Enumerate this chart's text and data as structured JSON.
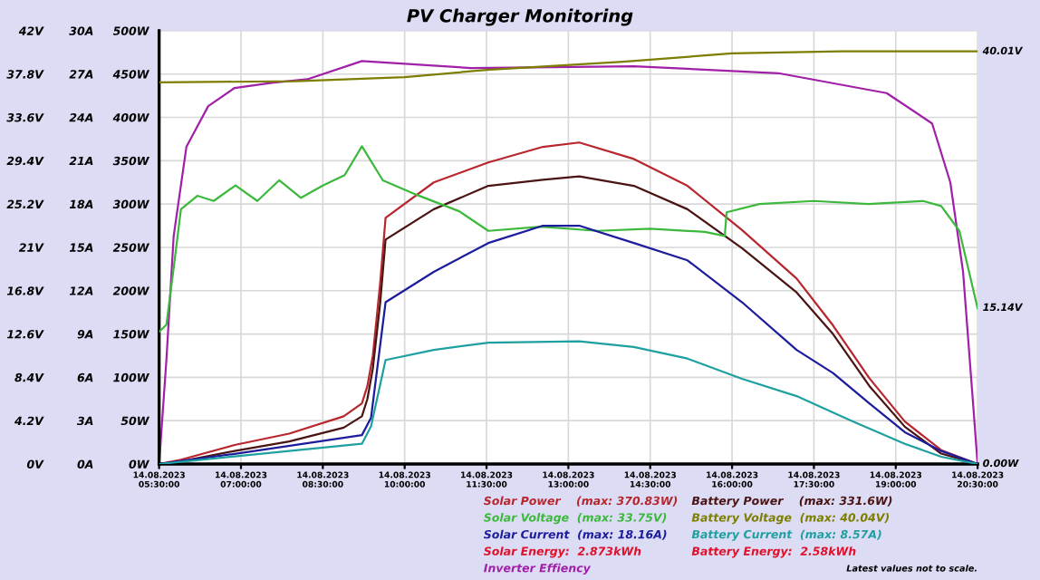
{
  "chart_data": {
    "type": "line",
    "title": "PV Charger Monitoring",
    "xlim": [
      "2023-08-14T05:30",
      "2023-08-14T20:30"
    ],
    "xticks": [
      {
        "value": "2023-08-14T05:30",
        "label": "14.08.2023\n05:30:00"
      },
      {
        "value": "2023-08-14T07:00",
        "label": "14.08.2023\n07:00:00"
      },
      {
        "value": "2023-08-14T08:30",
        "label": "14.08.2023\n08:30:00"
      },
      {
        "value": "2023-08-14T10:00",
        "label": "14.08.2023\n10:00:00"
      },
      {
        "value": "2023-08-14T11:30",
        "label": "14.08.2023\n11:30:00"
      },
      {
        "value": "2023-08-14T13:00",
        "label": "14.08.2023\n13:00:00"
      },
      {
        "value": "2023-08-14T14:30",
        "label": "14.08.2023\n14:30:00"
      },
      {
        "value": "2023-08-14T16:00",
        "label": "14.08.2023\n16:00:00"
      },
      {
        "value": "2023-08-14T17:30",
        "label": "14.08.2023\n17:30:00"
      },
      {
        "value": "2023-08-14T19:00",
        "label": "14.08.2023\n19:00:00"
      },
      {
        "value": "2023-08-14T20:30",
        "label": "14.08.2023\n20:30:00"
      }
    ],
    "ylim": [
      0,
      500
    ],
    "yticks": [
      {
        "value": 0,
        "label": "0W"
      },
      {
        "value": 50,
        "label": "50W"
      },
      {
        "value": 100,
        "label": "100W"
      },
      {
        "value": 150,
        "label": "150W"
      },
      {
        "value": 200,
        "label": "200W"
      },
      {
        "value": 250,
        "label": "250W"
      },
      {
        "value": 300,
        "label": "300W"
      },
      {
        "value": 350,
        "label": "350W"
      },
      {
        "value": 400,
        "label": "400W"
      },
      {
        "value": 450,
        "label": "450W"
      },
      {
        "value": 500,
        "label": "500W"
      }
    ],
    "y2lim": [
      0,
      42
    ],
    "y2ticks": [
      {
        "value": 0,
        "label": "0V"
      },
      {
        "value": 4.2,
        "label": "4.2V"
      },
      {
        "value": 8.4,
        "label": "8.4V"
      },
      {
        "value": 12.6,
        "label": "12.6V"
      },
      {
        "value": 16.8,
        "label": "16.8V"
      },
      {
        "value": 21,
        "label": "21V"
      },
      {
        "value": 25.2,
        "label": "25.2V"
      },
      {
        "value": 29.4,
        "label": "29.4V"
      },
      {
        "value": 33.6,
        "label": "33.6V"
      },
      {
        "value": 37.8,
        "label": "37.8V"
      },
      {
        "value": 42,
        "label": "42V"
      }
    ],
    "y3lim": [
      0,
      30
    ],
    "y3ticks": [
      {
        "value": 0,
        "label": "0A"
      },
      {
        "value": 3,
        "label": "3A"
      },
      {
        "value": 6,
        "label": "6A"
      },
      {
        "value": 9,
        "label": "9A"
      },
      {
        "value": 12,
        "label": "12A"
      },
      {
        "value": 15,
        "label": "15A"
      },
      {
        "value": 18,
        "label": "18A"
      },
      {
        "value": 21,
        "label": "21A"
      },
      {
        "value": 24,
        "label": "24A"
      },
      {
        "value": 27,
        "label": "27A"
      },
      {
        "value": 30,
        "label": "30A"
      }
    ],
    "grid": true,
    "legend": "bottom",
    "marker": "none",
    "line_style": "solid",
    "series": [
      {
        "name": "Solar Power    (max: 370.83W)",
        "color": "#b8262e",
        "x": [
          "2023-08-14T05:30",
          "2023-08-14T05:54",
          "2023-08-14T06:53",
          "2023-08-14T07:53",
          "2023-08-14T08:53",
          "2023-08-14T09:13",
          "2023-08-14T09:19",
          "2023-08-14T09:25",
          "2023-08-14T09:33",
          "2023-08-14T09:39",
          "2023-08-14T10:32",
          "2023-08-14T11:32",
          "2023-08-14T12:32",
          "2023-08-14T13:12",
          "2023-08-14T14:12",
          "2023-08-14T15:11",
          "2023-08-14T16:11",
          "2023-08-14T17:11",
          "2023-08-14T17:51",
          "2023-08-14T18:31",
          "2023-08-14T19:10",
          "2023-08-14T19:50",
          "2023-08-14T20:30"
        ],
        "values": [
          0,
          5,
          22,
          35,
          55,
          70,
          90,
          125,
          208,
          284,
          325,
          348,
          366,
          371,
          352,
          321,
          270,
          214,
          160,
          99,
          49,
          16,
          0
        ]
      },
      {
        "name": "Battery Power    (max: 331.6W)",
        "color": "#4a1414",
        "x": [
          "2023-08-14T05:30",
          "2023-08-14T05:54",
          "2023-08-14T06:53",
          "2023-08-14T07:53",
          "2023-08-14T08:53",
          "2023-08-14T09:13",
          "2023-08-14T09:19",
          "2023-08-14T09:25",
          "2023-08-14T09:33",
          "2023-08-14T09:39",
          "2023-08-14T10:32",
          "2023-08-14T11:32",
          "2023-08-14T12:32",
          "2023-08-14T13:12",
          "2023-08-14T14:12",
          "2023-08-14T15:11",
          "2023-08-14T16:11",
          "2023-08-14T17:11",
          "2023-08-14T17:51",
          "2023-08-14T18:31",
          "2023-08-14T19:10",
          "2023-08-14T19:50",
          "2023-08-14T20:30"
        ],
        "values": [
          0,
          3,
          15,
          26,
          42,
          55,
          75,
          110,
          185,
          259,
          294,
          321,
          328,
          332,
          321,
          294,
          249,
          198,
          150,
          90,
          43,
          12,
          0
        ]
      },
      {
        "name": "Solar Voltage  (max: 33.75V)",
        "color": "#3cb83c",
        "axis": "y2",
        "x": [
          "2023-08-14T05:30",
          "2023-08-14T05:38",
          "2023-08-14T05:46",
          "2023-08-14T05:54",
          "2023-08-14T06:12",
          "2023-08-14T06:30",
          "2023-08-14T06:54",
          "2023-08-14T07:18",
          "2023-08-14T07:42",
          "2023-08-14T08:06",
          "2023-08-14T08:30",
          "2023-08-14T08:54",
          "2023-08-14T09:13",
          "2023-08-14T09:36",
          "2023-08-14T10:13",
          "2023-08-14T11:00",
          "2023-08-14T11:32",
          "2023-08-14T12:30",
          "2023-08-14T13:32",
          "2023-08-14T14:30",
          "2023-08-14T15:30",
          "2023-08-14T15:52",
          "2023-08-14T15:54",
          "2023-08-14T16:30",
          "2023-08-14T17:30",
          "2023-08-14T18:30",
          "2023-08-14T19:30",
          "2023-08-14T19:50",
          "2023-08-14T20:10",
          "2023-08-14T20:30"
        ],
        "values": [
          12.8,
          13.5,
          19,
          24.7,
          26,
          25.5,
          27,
          25.5,
          27.5,
          25.8,
          27,
          28,
          30.8,
          27.5,
          26.1,
          24.5,
          22.6,
          23,
          22.6,
          22.8,
          22.5,
          22.1,
          24.4,
          25.2,
          25.5,
          25.2,
          25.5,
          25,
          22.6,
          15.1
        ]
      },
      {
        "name": "Battery Voltage  (max: 40.04V)",
        "color": "#7d7d00",
        "axis": "y2",
        "x": [
          "2023-08-14T05:30",
          "2023-08-14T08:00",
          "2023-08-14T10:00",
          "2023-08-14T11:30",
          "2023-08-14T14:00",
          "2023-08-14T16:00",
          "2023-08-14T18:00",
          "2023-08-14T20:30"
        ],
        "values": [
          37.0,
          37.1,
          37.5,
          38.2,
          39.0,
          39.8,
          40.0,
          40.0
        ]
      },
      {
        "name": "Solar Current  (max: 18.16A)",
        "color": "#1c1c9c",
        "axis": "y3",
        "x": [
          "2023-08-14T05:30",
          "2023-08-14T06:53",
          "2023-08-14T09:13",
          "2023-08-14T09:23",
          "2023-08-14T09:39",
          "2023-08-14T10:32",
          "2023-08-14T11:32",
          "2023-08-14T12:32",
          "2023-08-14T13:12",
          "2023-08-14T14:12",
          "2023-08-14T15:11",
          "2023-08-14T16:11",
          "2023-08-14T17:11",
          "2023-08-14T17:51",
          "2023-08-14T18:31",
          "2023-08-14T19:10",
          "2023-08-14T19:50",
          "2023-08-14T20:30"
        ],
        "values": [
          0,
          0.7,
          2.0,
          3.2,
          11.2,
          13.3,
          15.3,
          16.5,
          16.5,
          15.3,
          14.1,
          11.2,
          7.9,
          6.3,
          4.2,
          2.2,
          0.9,
          0
        ]
      },
      {
        "name": "Battery Current  (max: 8.57A)",
        "color": "#1fa0a0",
        "axis": "y3",
        "x": [
          "2023-08-14T05:30",
          "2023-08-14T09:13",
          "2023-08-14T09:23",
          "2023-08-14T09:39",
          "2023-08-14T10:32",
          "2023-08-14T11:32",
          "2023-08-14T13:12",
          "2023-08-14T14:12",
          "2023-08-14T15:11",
          "2023-08-14T16:11",
          "2023-08-14T17:11",
          "2023-08-14T18:11",
          "2023-08-14T19:10",
          "2023-08-14T19:50",
          "2023-08-14T20:30"
        ],
        "values": [
          0,
          1.4,
          2.6,
          7.2,
          7.9,
          8.4,
          8.5,
          8.1,
          7.3,
          5.9,
          4.7,
          3.0,
          1.4,
          0.5,
          0
        ]
      },
      {
        "name": "Inverter Effiency",
        "color": "#a020a8",
        "x": [
          "2023-08-14T05:30",
          "2023-08-14T05:38",
          "2023-08-14T05:46",
          "2023-08-14T06:00",
          "2023-08-14T06:24",
          "2023-08-14T06:53",
          "2023-08-14T07:34",
          "2023-08-14T08:13",
          "2023-08-14T09:13",
          "2023-08-14T11:13",
          "2023-08-14T14:12",
          "2023-08-14T16:51",
          "2023-08-14T18:50",
          "2023-08-14T19:40",
          "2023-08-14T20:00",
          "2023-08-14T20:14",
          "2023-08-14T20:24",
          "2023-08-14T20:30"
        ],
        "values": [
          0,
          120,
          263,
          366,
          413,
          434,
          440,
          444,
          465,
          457,
          459,
          451,
          428,
          393,
          325,
          222,
          84,
          0
        ]
      }
    ],
    "annotations": [
      "Solar Energy:  2.873kWh",
      "Battery Energy:  2.58kWh",
      "Latest values not to scale.",
      {
        "text": "40.01V",
        "x": "2023-08-14T20:30",
        "y": 476
      },
      {
        "text": "15.14V",
        "x": "2023-08-14T20:30",
        "y": 180
      },
      {
        "text": "0.00W",
        "x": "2023-08-14T20:30",
        "y": 0
      }
    ]
  }
}
